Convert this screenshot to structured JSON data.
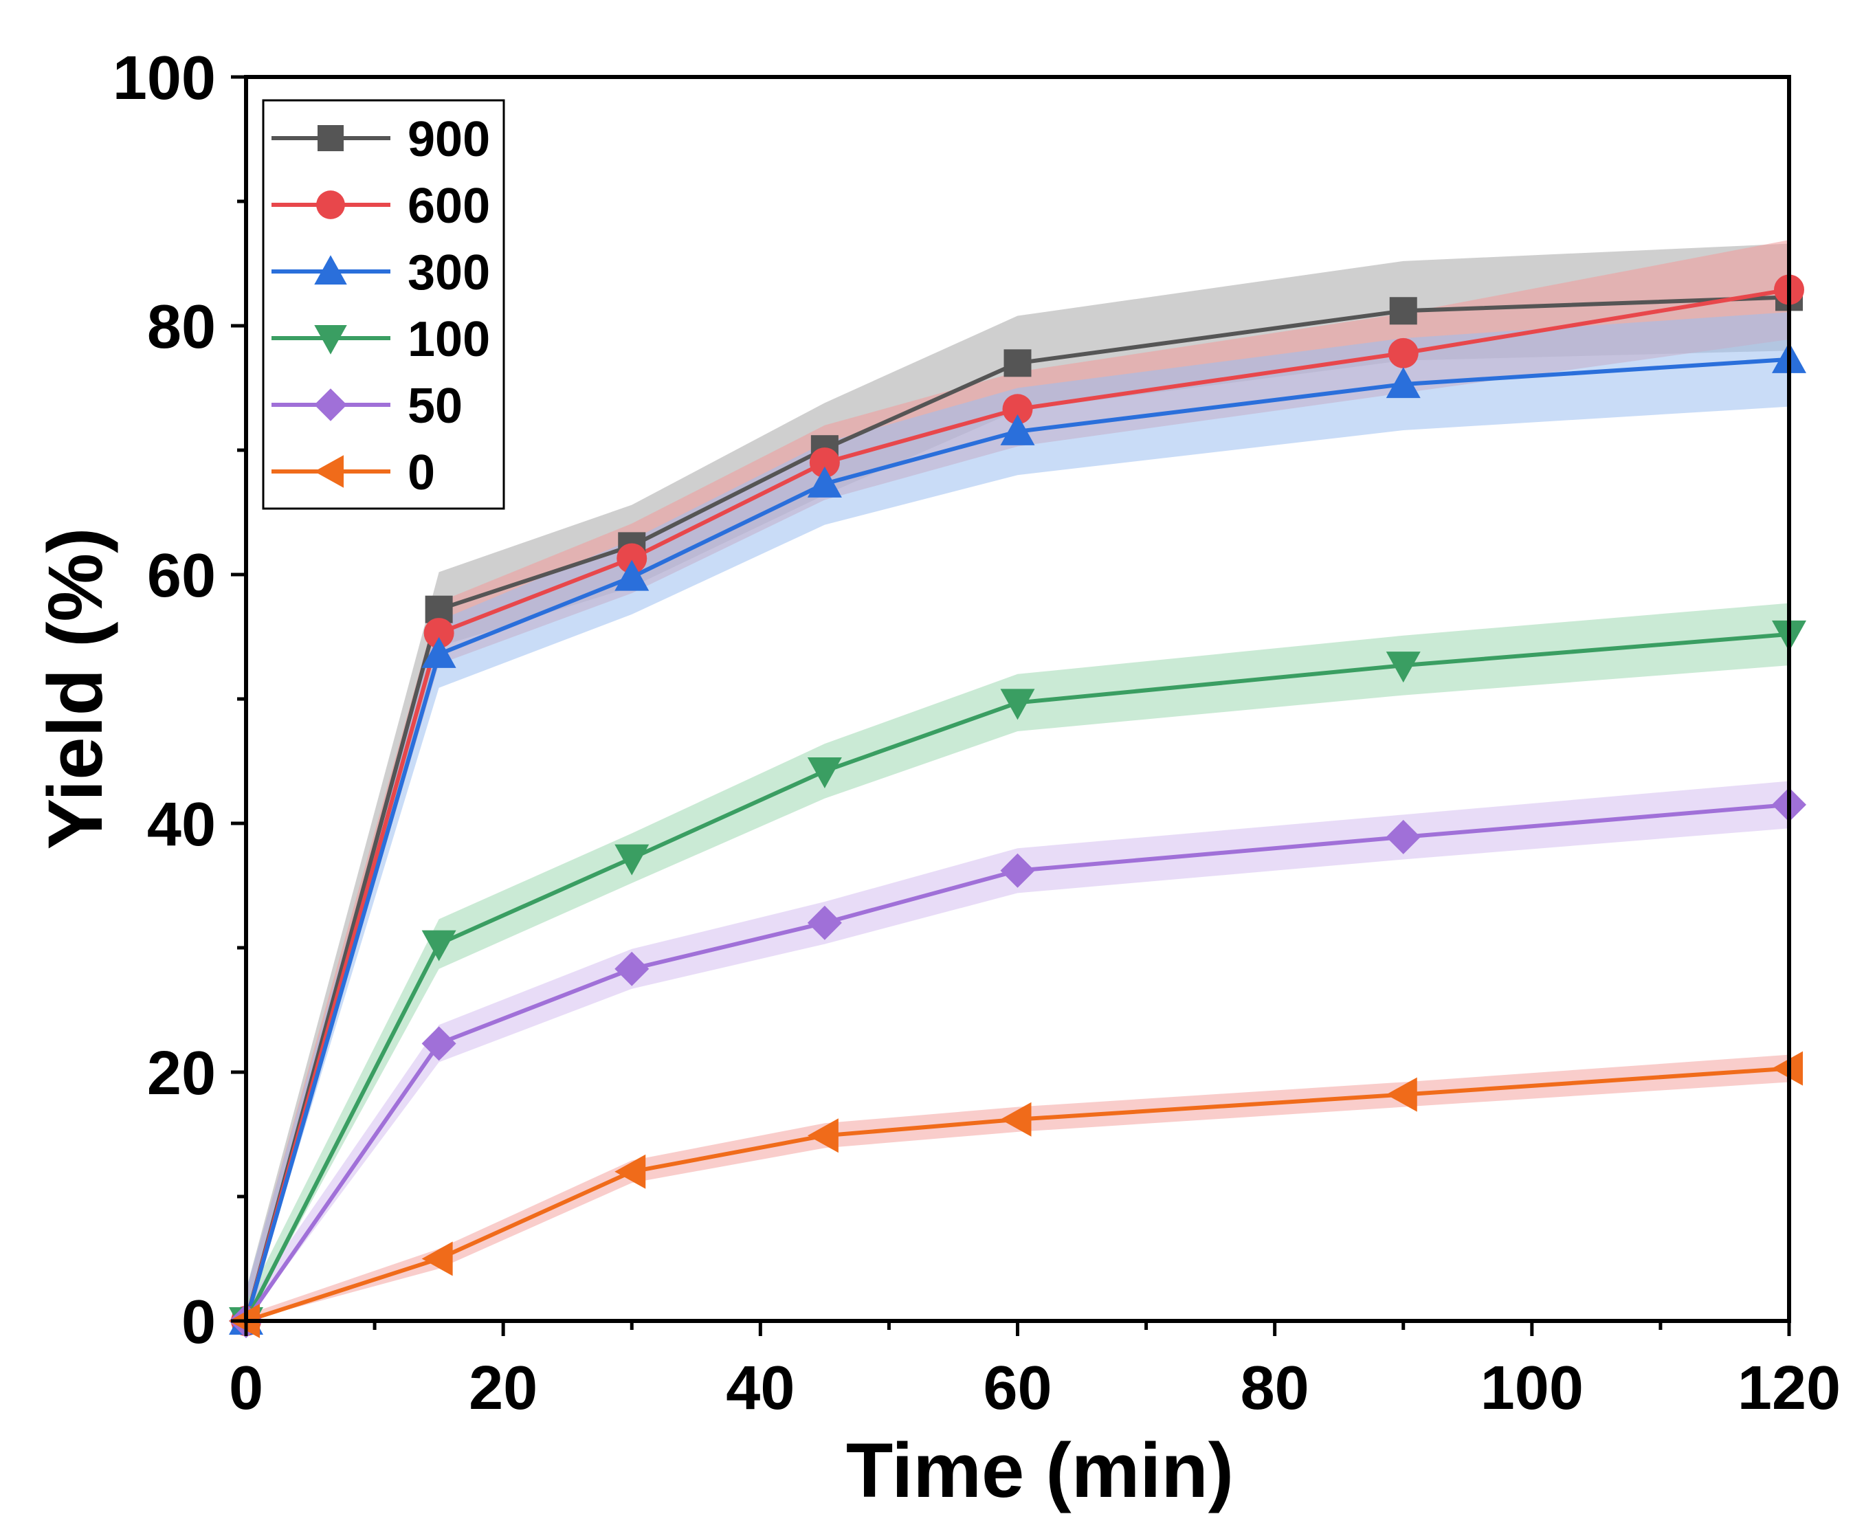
{
  "chart_data": {
    "type": "line",
    "title": "",
    "xlabel": "Time (min)",
    "ylabel": "Yield (%)",
    "xlim": [
      0,
      120
    ],
    "ylim": [
      0,
      100
    ],
    "xticks": [
      0,
      20,
      40,
      60,
      80,
      100,
      120
    ],
    "yticks": [
      0,
      20,
      40,
      60,
      80,
      100
    ],
    "grid": false,
    "legend": "top-left",
    "x": [
      0,
      15,
      30,
      45,
      60,
      90,
      120
    ],
    "series": [
      {
        "name": "900",
        "color": "#555555",
        "band_color": "#a8a8a8",
        "marker": "square",
        "values": [
          0,
          57.2,
          62.3,
          70.1,
          77.0,
          81.2,
          82.3
        ],
        "band": [
          2.5,
          3.0,
          3.3,
          3.7,
          3.8,
          4.0,
          4.3
        ]
      },
      {
        "name": "600",
        "color": "#e8474b",
        "band_color": "#f29b9a",
        "marker": "circle",
        "values": [
          0,
          55.3,
          61.3,
          69.0,
          73.3,
          77.8,
          82.9
        ],
        "band": [
          2.3,
          2.5,
          2.8,
          3.0,
          3.0,
          3.2,
          4.0
        ]
      },
      {
        "name": "300",
        "color": "#2a6fdb",
        "band_color": "#9cc0f0",
        "marker": "triangle-up",
        "values": [
          0,
          53.6,
          59.8,
          67.3,
          71.5,
          75.3,
          77.3
        ],
        "band": [
          2.5,
          2.7,
          3.0,
          3.3,
          3.5,
          3.7,
          3.8
        ]
      },
      {
        "name": "100",
        "color": "#3a9e62",
        "band_color": "#9fd8b2",
        "marker": "triangle-down",
        "values": [
          0,
          30.3,
          37.2,
          44.2,
          49.7,
          52.7,
          55.2
        ],
        "band": [
          1.5,
          2.0,
          2.0,
          2.2,
          2.3,
          2.4,
          2.5
        ]
      },
      {
        "name": "50",
        "color": "#a070d8",
        "band_color": "#d5bff0",
        "marker": "diamond",
        "values": [
          0,
          22.3,
          28.3,
          32.0,
          36.2,
          38.9,
          41.5
        ],
        "band": [
          1.3,
          1.5,
          1.6,
          1.7,
          1.8,
          1.8,
          1.9
        ]
      },
      {
        "name": "0",
        "color": "#f06b1a",
        "band_color": "#f4a4a0",
        "marker": "triangle-left",
        "values": [
          0,
          5.0,
          12.0,
          14.9,
          16.2,
          18.2,
          20.3
        ],
        "band": [
          0.5,
          0.8,
          0.9,
          1.0,
          1.0,
          1.0,
          1.1
        ]
      }
    ]
  }
}
